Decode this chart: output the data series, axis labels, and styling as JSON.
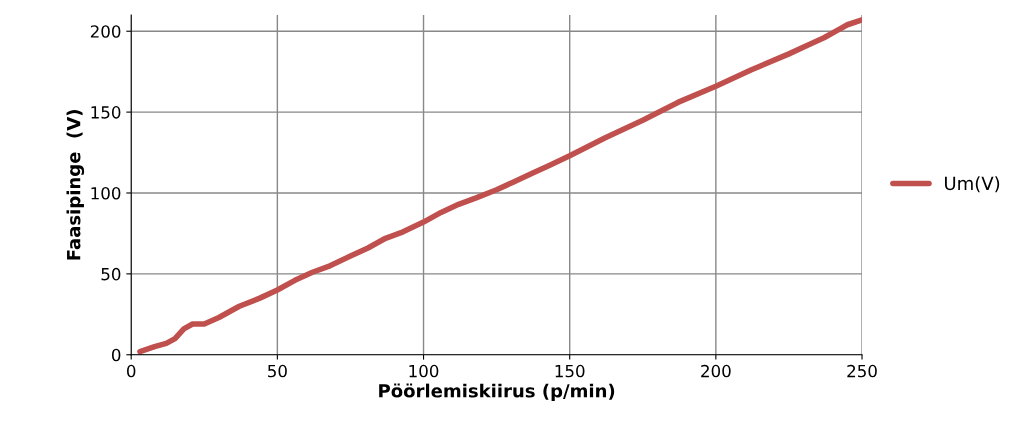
{
  "chart_data": {
    "type": "line",
    "xlabel": "Pöörlemiskiirus (p/min)",
    "ylabel": "Faasipinge  (V)",
    "xlim": [
      0,
      250
    ],
    "xticks": [
      0,
      50,
      100,
      150,
      200,
      250
    ],
    "ylim": [
      0,
      210
    ],
    "yticks": [
      0,
      50,
      100,
      150,
      200
    ],
    "grid": true,
    "legend": "right",
    "marker": "none",
    "line_style": "solid",
    "series": [
      {
        "name": "Um(V)",
        "color": "#c0504d",
        "x": [
          3,
          8,
          12,
          15,
          18,
          21,
          25,
          30,
          37,
          44,
          50,
          56,
          62,
          68,
          75,
          81,
          87,
          93,
          100,
          106,
          112,
          118,
          125,
          131,
          137,
          143,
          150,
          162,
          175,
          187,
          200,
          212,
          225,
          231,
          237,
          242,
          245,
          250
        ],
        "values": [
          2,
          5,
          7,
          10,
          16,
          19,
          19,
          23,
          30,
          35,
          40,
          46,
          51,
          55,
          61,
          66,
          72,
          76,
          82,
          88,
          93,
          97,
          102,
          107,
          112,
          117,
          123,
          134,
          145,
          156,
          166,
          176,
          186,
          191,
          196,
          201,
          204,
          207
        ]
      }
    ]
  }
}
